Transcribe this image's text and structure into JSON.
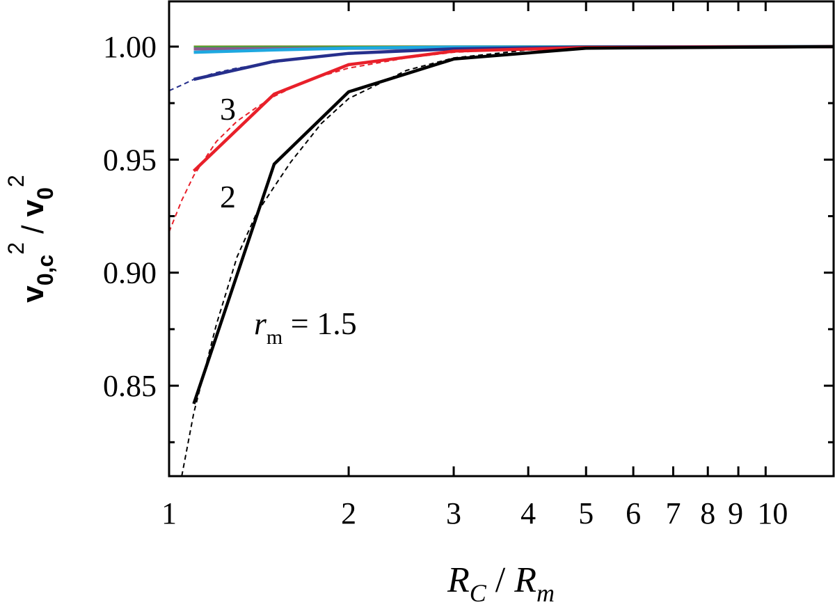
{
  "chart_data": {
    "type": "line",
    "title": "",
    "xlabel": {
      "main": "R",
      "main_sub": "C",
      "slash": " / ",
      "den": "R",
      "den_sub": "m"
    },
    "ylabel": {
      "v1": "v",
      "sub1": "0,c",
      "sup1": "2",
      "slash": " / ",
      "v2": "v",
      "sub2": "0",
      "sup2": "2"
    },
    "x_scale": "log",
    "xlim": [
      1,
      13
    ],
    "ylim": [
      0.81,
      1.02
    ],
    "x_ticks": [
      {
        "value": 1,
        "label": "1"
      },
      {
        "value": 2,
        "label": "2"
      },
      {
        "value": 3,
        "label": "3"
      },
      {
        "value": 4,
        "label": "4"
      },
      {
        "value": 5,
        "label": "5"
      },
      {
        "value": 6,
        "label": "6"
      },
      {
        "value": 7,
        "label": "7"
      },
      {
        "value": 8,
        "label": "8"
      },
      {
        "value": 9,
        "label": "9"
      },
      {
        "value": 10,
        "label": "10"
      }
    ],
    "y_ticks": [
      {
        "value": 0.85,
        "label": "0.85"
      },
      {
        "value": 0.9,
        "label": "0.90"
      },
      {
        "value": 0.95,
        "label": "0.95"
      },
      {
        "value": 1.0,
        "label": "1.00"
      }
    ],
    "grid": false,
    "series": [
      {
        "label": "r_m = 1.5",
        "color": "#000000",
        "x": [
          1.1,
          1.5,
          2,
          3,
          5,
          13
        ],
        "y": [
          0.842,
          0.948,
          0.98,
          0.9945,
          0.9993,
          1.0
        ]
      },
      {
        "label": "2",
        "color": "#e8202a",
        "x": [
          1.1,
          1.5,
          2,
          3,
          5,
          13
        ],
        "y": [
          0.945,
          0.979,
          0.992,
          0.998,
          0.9996,
          1.0
        ]
      },
      {
        "label": "3",
        "color": "#262f8c",
        "x": [
          1.1,
          1.5,
          2,
          3,
          5,
          13
        ],
        "y": [
          0.9855,
          0.9935,
          0.997,
          0.999,
          0.9998,
          1.0
        ]
      },
      {
        "label": "",
        "color": "#1ea8e0",
        "x": [
          1.1,
          1.5,
          2,
          3,
          13
        ],
        "y": [
          0.9975,
          0.9985,
          0.9993,
          0.9998,
          1.0
        ]
      },
      {
        "label": "",
        "color": "#8a5a8a",
        "x": [
          1.1,
          13
        ],
        "y": [
          0.999,
          1.0
        ]
      },
      {
        "label": "",
        "color": "#3aa83a",
        "x": [
          1.1,
          13
        ],
        "y": [
          0.9995,
          1.0
        ]
      },
      {
        "label": "",
        "color": "#8c8a2a",
        "x": [
          1.1,
          13
        ],
        "y": [
          0.9998,
          1.0
        ]
      }
    ],
    "fits": [
      {
        "color": "#000000",
        "x": [
          1.05,
          1.1,
          1.2,
          1.3,
          1.4,
          1.5,
          1.6,
          1.8,
          2,
          2.5,
          3,
          4,
          5,
          7,
          10,
          13
        ],
        "y": [
          0.81,
          0.838,
          0.877,
          0.907,
          0.926,
          0.938,
          0.949,
          0.966,
          0.977,
          0.9895,
          0.995,
          0.9985,
          0.9995,
          0.9999,
          1.0,
          1.0
        ]
      },
      {
        "color": "#e8202a",
        "x": [
          1.0,
          1.05,
          1.1,
          1.2,
          1.3,
          1.4,
          1.5,
          1.7,
          2,
          2.5,
          3,
          4,
          5,
          7,
          13
        ],
        "y": [
          0.918,
          0.932,
          0.943,
          0.958,
          0.967,
          0.973,
          0.978,
          0.985,
          0.9905,
          0.995,
          0.9975,
          0.999,
          0.9996,
          0.9999,
          1.0
        ]
      },
      {
        "color": "#262f8c",
        "x": [
          1.0,
          1.05,
          1.1,
          1.2,
          1.3,
          1.5,
          1.7,
          2,
          2.5,
          3,
          4,
          5,
          13
        ],
        "y": [
          0.9805,
          0.983,
          0.9855,
          0.9885,
          0.9905,
          0.993,
          0.995,
          0.9968,
          0.998,
          0.999,
          0.9995,
          0.9998,
          1.0
        ]
      }
    ],
    "annotations": [
      {
        "key": "rm",
        "main": "r",
        "sub": "m",
        "rest": " = 1.5",
        "x": 1.5,
        "y": 0.867
      },
      {
        "key": "two",
        "text": "2",
        "x": 1.3,
        "y": 0.933
      },
      {
        "key": "three",
        "text": "3",
        "x": 1.3,
        "y": 0.973
      }
    ]
  }
}
